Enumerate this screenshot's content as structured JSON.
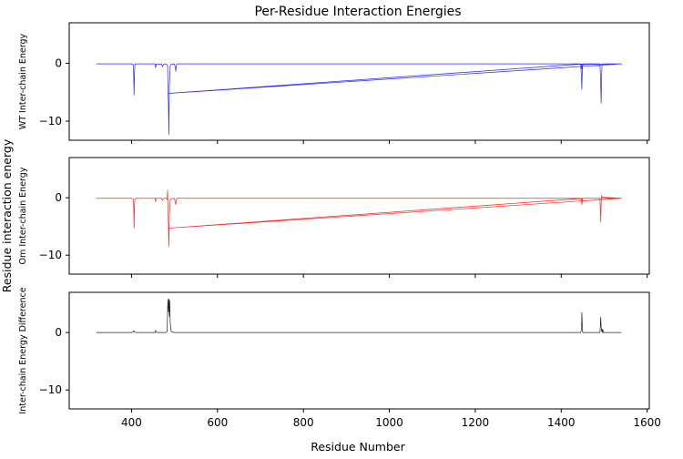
{
  "chart_data": {
    "type": "line",
    "title": "Per-Residue Interaction Energies",
    "xlabel": "Residue Number",
    "ylabel": "Residue interaction energy",
    "xlim": [
      255,
      1605
    ],
    "x_ticks": [
      400,
      600,
      800,
      1000,
      1200,
      1400,
      1600
    ],
    "x_tick_labels": [
      "400",
      "600",
      "800",
      "1000",
      "1200",
      "1400",
      "1600"
    ],
    "grid": false,
    "panels": [
      {
        "ylabel": "WT Inter-chain Energy",
        "ylim": [
          -13.3,
          7
        ],
        "y_ticks": [
          0,
          -10
        ],
        "y_tick_labels": [
          "0",
          "−10"
        ],
        "series": [
          {
            "color": "#0000ff",
            "x": [
              318,
              400,
              404,
              405,
              406,
              407,
              408,
              409,
              410,
              455,
              456,
              457,
              458,
              460,
              462,
              470,
              472,
              474,
              476,
              480,
              482,
              484,
              485,
              486,
              487,
              488,
              490,
              492,
              500,
              502,
              503,
              504,
              506,
              510,
              520,
              530,
              1445,
              1447,
              1448,
              1449,
              1450,
              1452,
              1455,
              1460,
              1480,
              1490,
              1491,
              1492,
              1493,
              1494,
              1495,
              1540,
              1541,
              1446,
              1447,
              1448,
              1449,
              1450,
              1451,
              1452,
              1453,
              486,
              1540
            ],
            "y": [
              -0.1,
              -0.1,
              -0.2,
              -2.0,
              -5.5,
              -1.5,
              -0.2,
              -0.1,
              -0.1,
              -0.1,
              -0.8,
              -0.4,
              -0.1,
              -0.1,
              -0.2,
              -0.1,
              -0.6,
              -0.3,
              -0.1,
              -0.1,
              -0.2,
              -0.5,
              -5.0,
              -7.2,
              -12.3,
              -4.0,
              -0.5,
              -0.2,
              -0.1,
              -0.8,
              -1.4,
              -0.5,
              -0.1,
              -0.1,
              -0.1,
              -0.1,
              -0.1,
              -2.0,
              -4.5,
              -1.5,
              -0.3,
              -0.1,
              -0.1,
              -0.1,
              -0.1,
              -0.1,
              -1.5,
              -4.0,
              -6.9,
              -2.5,
              -0.1,
              -0.1,
              -0.1,
              -0.2,
              -0.6,
              -1.0,
              -0.5,
              -0.1,
              -0.1,
              -0.1,
              -0.1,
              -5.2,
              -0.1
            ]
          }
        ]
      },
      {
        "ylabel": "Om Inter-chain Energy",
        "ylim": [
          -13.3,
          7
        ],
        "y_ticks": [
          0,
          -10
        ],
        "y_tick_labels": [
          "0",
          "−10"
        ],
        "series": [
          {
            "color": "#ff0000",
            "x": [
              318,
              400,
              404,
              405,
              406,
              407,
              408,
              410,
              455,
              456,
              457,
              458,
              462,
              470,
              472,
              474,
              476,
              480,
              483,
              484,
              485,
              486,
              487,
              488,
              490,
              492,
              500,
              502,
              503,
              504,
              506,
              510,
              530,
              1445,
              1447,
              1448,
              1449,
              1450,
              1455,
              1480,
              1490,
              1491,
              1492,
              1493,
              1494,
              1495,
              1540,
              1446,
              1447,
              1448,
              1449,
              1450,
              1451,
              1452,
              1453,
              486,
              1540
            ],
            "y": [
              -0.1,
              -0.1,
              -0.2,
              -1.5,
              -5.3,
              -1.0,
              -0.2,
              -0.1,
              -0.1,
              -0.7,
              -0.2,
              -0.1,
              -0.1,
              -0.1,
              -0.5,
              -0.2,
              -0.1,
              -0.1,
              -0.3,
              1.3,
              -2.5,
              -4.8,
              -8.5,
              -3.0,
              -0.4,
              -0.2,
              -0.1,
              -0.9,
              -1.2,
              -0.4,
              -0.1,
              -0.1,
              -0.1,
              -0.1,
              -0.4,
              -1.2,
              -0.6,
              -0.1,
              -0.1,
              -0.1,
              -0.1,
              -1.5,
              -4.2,
              -1.0,
              0.4,
              0.1,
              -0.1,
              -0.1,
              -0.3,
              -0.8,
              -0.5,
              -0.1,
              -0.1,
              -0.1,
              -0.1,
              -5.3,
              -0.1
            ]
          }
        ]
      },
      {
        "ylabel": "Inter-chain Energy Difference",
        "ylim": [
          -13.3,
          7
        ],
        "y_ticks": [
          0,
          -10
        ],
        "y_tick_labels": [
          "0",
          "−10"
        ],
        "series": [
          {
            "color": "#000000",
            "x": [
              318,
              400,
              404,
              405,
              406,
              407,
              410,
              455,
              456,
              457,
              460,
              470,
              480,
              483,
              484,
              485,
              486,
              487,
              488,
              489,
              490,
              492,
              494,
              500,
              530,
              1445,
              1447,
              1448,
              1449,
              1450,
              1455,
              1480,
              1490,
              1491,
              1492,
              1493,
              1494,
              1495,
              1496,
              1497,
              1498,
              1540
            ],
            "y": [
              0.0,
              0.0,
              0.1,
              0.3,
              0.3,
              0.1,
              0.0,
              0.0,
              0.4,
              0.1,
              0.0,
              0.0,
              0.0,
              0.2,
              4.2,
              5.8,
              3.6,
              5.9,
              2.8,
              5.6,
              1.8,
              0.3,
              0.1,
              0.0,
              0.0,
              0.0,
              0.4,
              3.5,
              1.1,
              0.0,
              0.0,
              0.0,
              0.0,
              1.1,
              2.7,
              0.9,
              0.2,
              0.6,
              0.0,
              0.5,
              0.0,
              0.0
            ]
          }
        ]
      }
    ]
  }
}
